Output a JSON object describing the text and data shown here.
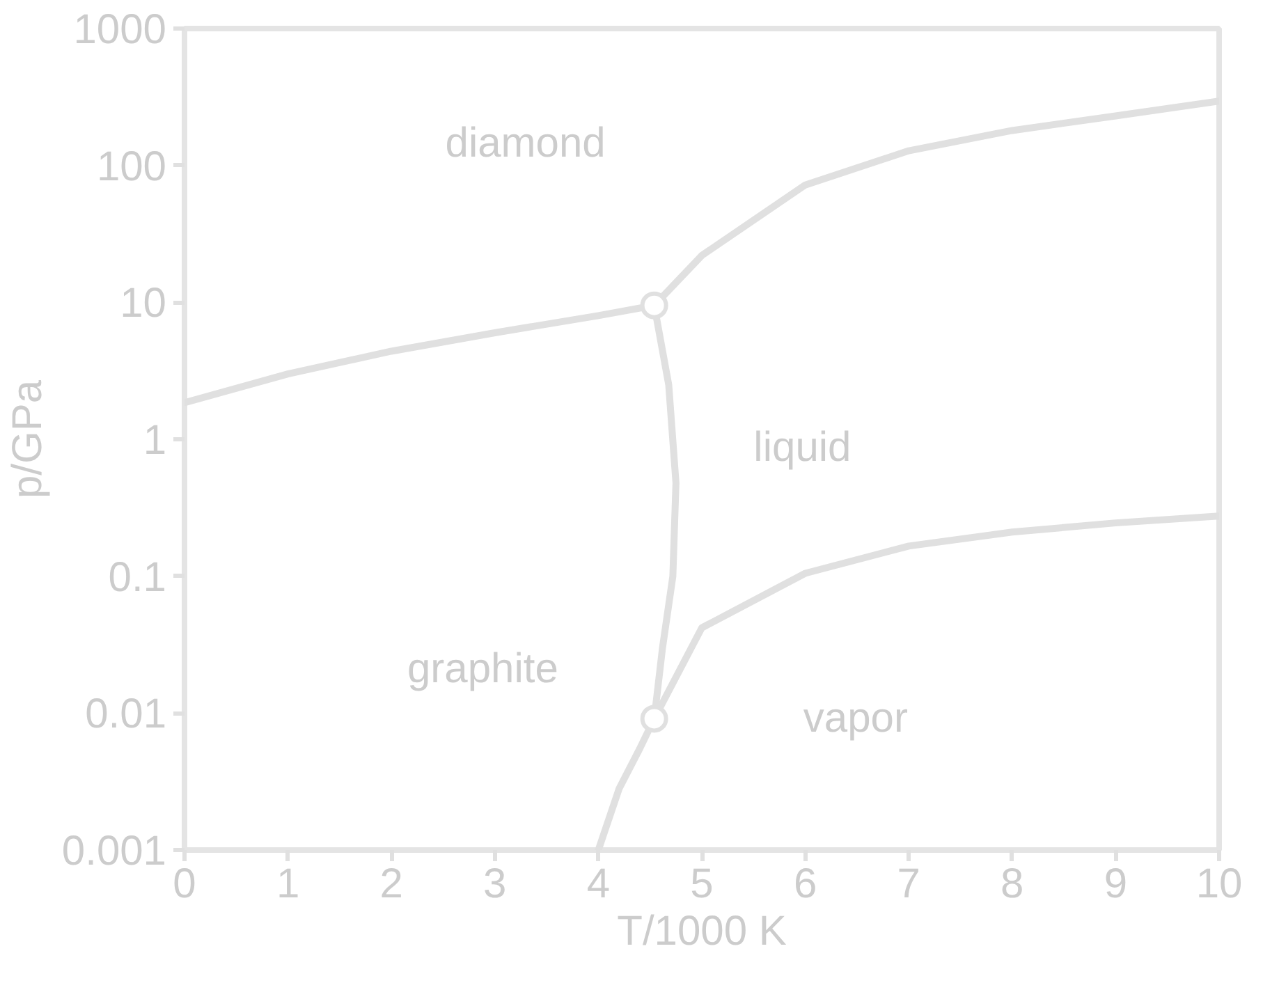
{
  "chart_data": {
    "type": "line",
    "xlabel": "T/1000 K",
    "ylabel": "p/GPa",
    "log": "y",
    "grid": false,
    "marker": "none",
    "line_style": "solid",
    "xlim": [
      0,
      10
    ],
    "ylim": [
      0.001,
      1000
    ],
    "xticks": [
      0,
      1,
      2,
      3,
      4,
      5,
      6,
      7,
      8,
      9,
      10
    ],
    "yticks": [
      0.001,
      0.01,
      0.1,
      1,
      10,
      100,
      1000
    ],
    "series": [
      {
        "color": "#e0e0e0",
        "x": [
          0,
          1,
          2,
          3,
          4,
          4.54
        ],
        "values": [
          1.85,
          3.0,
          4.4,
          6.0,
          8.0,
          9.5
        ]
      },
      {
        "color": "#e0e0e0",
        "x": [
          4.54,
          5,
          6,
          7,
          8,
          9,
          10
        ],
        "values": [
          9.5,
          22,
          72,
          128,
          180,
          230,
          295
        ]
      },
      {
        "color": "#e0e0e0",
        "x": [
          4.54,
          4.68,
          4.75,
          4.72,
          4.62,
          4.54
        ],
        "values": [
          9.5,
          2.5,
          0.48,
          0.1,
          0.03,
          0.0091
        ]
      },
      {
        "color": "#e0e0e0",
        "x": [
          4.54,
          5,
          6,
          7,
          8,
          9,
          10
        ],
        "values": [
          0.0091,
          0.042,
          0.105,
          0.166,
          0.21,
          0.245,
          0.275
        ]
      },
      {
        "color": "#e0e0e0",
        "x": [
          4.54,
          4.4,
          4.2,
          4.0
        ],
        "values": [
          0.0091,
          0.0055,
          0.0028,
          0.001
        ]
      },
      {
        "type": "scatter",
        "marker": "circle",
        "color": "#e0e0e0",
        "x": [
          4.54,
          4.54
        ],
        "values": [
          9.5,
          0.0091
        ]
      }
    ],
    "annotations": [
      "diamond",
      "liquid",
      "graphite",
      "vapor"
    ]
  }
}
